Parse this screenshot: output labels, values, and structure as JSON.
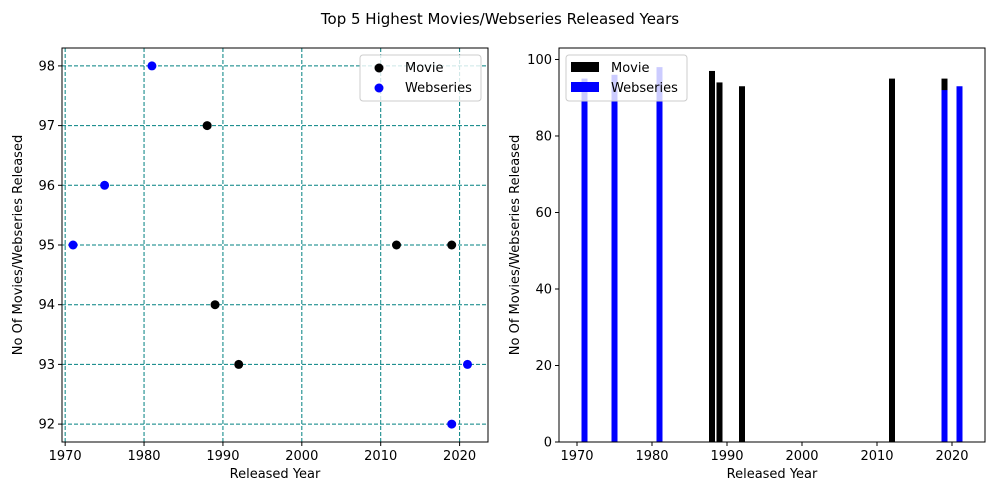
{
  "title": "Top 5 Highest Movies/Webseries Released Years",
  "colors": {
    "movie": "#000000",
    "webseries": "#0000ff",
    "grid": "#008080"
  },
  "chart_data": [
    {
      "type": "scatter",
      "xlabel": "Released Year",
      "ylabel": "No Of Movies/Webseries Released",
      "xlim": [
        1969.6,
        2023.6
      ],
      "ylim": [
        91.7,
        98.3
      ],
      "xticks": [
        1970,
        1980,
        1990,
        2000,
        2010,
        2020
      ],
      "yticks": [
        92,
        93,
        94,
        95,
        96,
        97,
        98
      ],
      "grid": true,
      "grid_style": "dashed",
      "legend": "top-right",
      "series": [
        {
          "name": "Movie",
          "color": "#000000",
          "x": [
            1988,
            1989,
            1992,
            2012,
            2019
          ],
          "y": [
            97,
            94,
            93,
            95,
            95
          ]
        },
        {
          "name": "Webseries",
          "color": "#0000ff",
          "x": [
            1971,
            1975,
            1981,
            2019,
            2021
          ],
          "y": [
            95,
            96,
            98,
            92,
            93
          ]
        }
      ]
    },
    {
      "type": "bar",
      "xlabel": "Released Year",
      "ylabel": "No Of Movies/Webseries Released",
      "xlim": [
        1967.6,
        2024.4
      ],
      "ylim": [
        0,
        103
      ],
      "xticks": [
        1970,
        1980,
        1990,
        2000,
        2010,
        2020
      ],
      "yticks": [
        0,
        20,
        40,
        60,
        80,
        100
      ],
      "bar_width": 0.8,
      "grid": false,
      "legend": "top-left",
      "series": [
        {
          "name": "Movie",
          "color": "#000000",
          "x": [
            1988,
            1989,
            1992,
            2012,
            2019
          ],
          "y": [
            97,
            94,
            93,
            95,
            95
          ]
        },
        {
          "name": "Webseries",
          "color": "#0000ff",
          "x": [
            1971,
            1975,
            1981,
            2019,
            2021
          ],
          "y": [
            95,
            96,
            98,
            92,
            93
          ]
        }
      ]
    }
  ]
}
